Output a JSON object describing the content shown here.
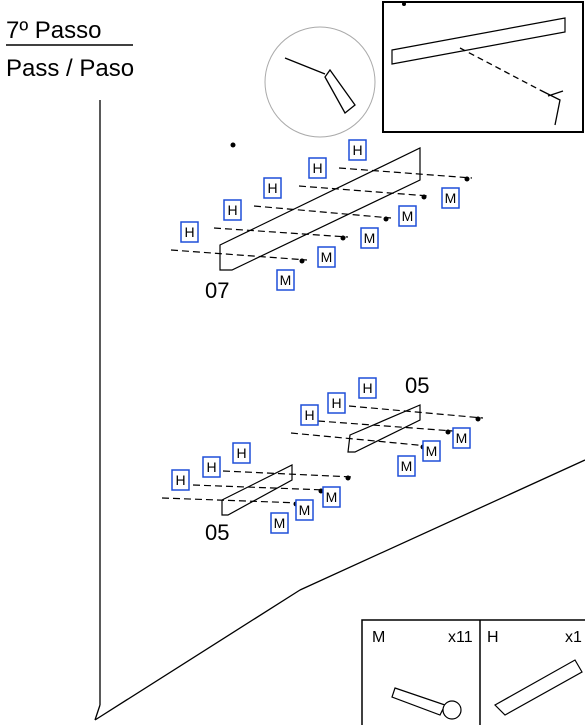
{
  "header": {
    "step": "7º Passo",
    "subtitle": "Pass / Paso"
  },
  "groups": [
    {
      "label": "07",
      "h": [
        "H",
        "H",
        "H",
        "H",
        "H"
      ],
      "m": [
        "M",
        "M",
        "M",
        "M",
        "M"
      ]
    },
    {
      "label": "05",
      "h": [
        "H",
        "H",
        "H"
      ],
      "m": [
        "M",
        "M",
        "M"
      ]
    },
    {
      "label": "05",
      "h": [
        "H",
        "H",
        "H"
      ],
      "m": [
        "M",
        "M",
        "M"
      ]
    }
  ],
  "legend": [
    {
      "name": "M",
      "qty": "x11"
    },
    {
      "name": "H",
      "qty": "x1"
    }
  ]
}
